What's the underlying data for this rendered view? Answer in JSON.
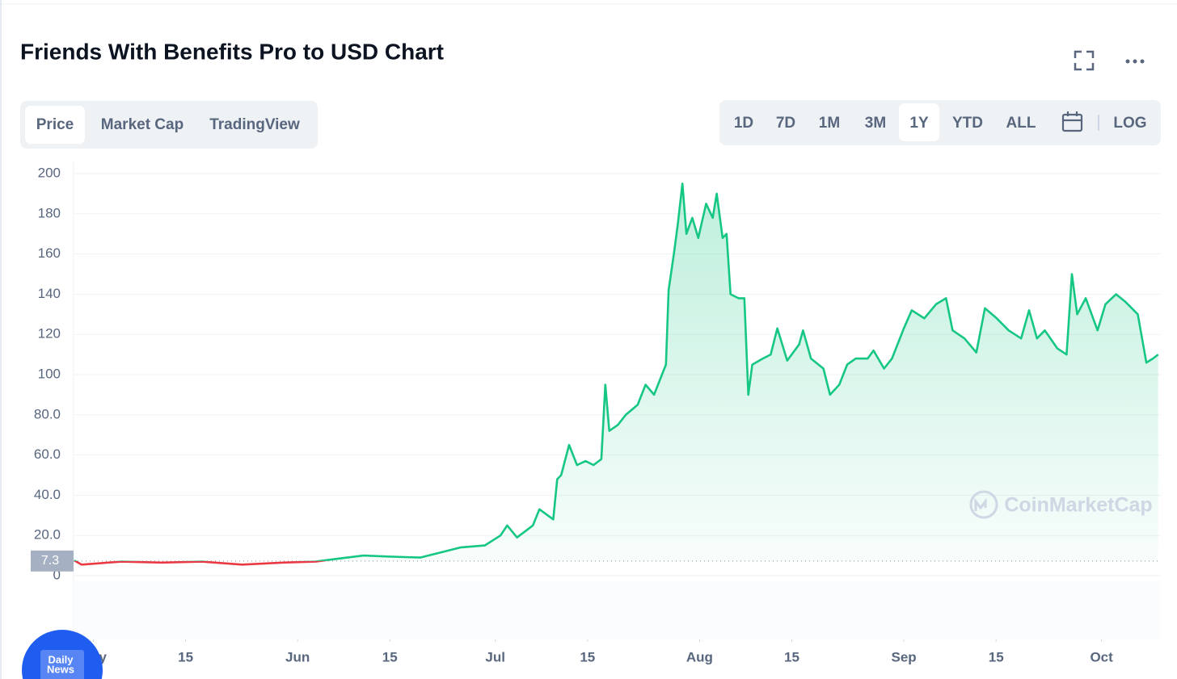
{
  "header": {
    "title": "Friends With Benefits Pro to USD Chart"
  },
  "tabs": [
    "Price",
    "Market Cap",
    "TradingView"
  ],
  "active_tab": 0,
  "ranges": [
    "1D",
    "7D",
    "1M",
    "3M",
    "1Y",
    "YTD",
    "ALL"
  ],
  "active_range": 4,
  "log_button": "LOG",
  "watermark": "CoinMarketCap",
  "badge": [
    "Daily",
    "News"
  ],
  "chart_data": {
    "type": "line",
    "x": [
      -2.9,
      -1.8,
      4.3,
      10.4,
      16.5,
      22.6,
      28.8,
      33.7,
      37.3,
      41,
      44.7,
      49.6,
      55.7,
      59.4,
      61.8,
      62.8,
      64.3,
      66.7,
      67.7,
      69.8,
      70.4,
      71,
      72.2,
      73.4,
      74.7,
      75.9,
      77.1,
      77.7,
      78.3,
      79.6,
      80.8,
      82.6,
      83.8,
      85.1,
      86.3,
      86.9,
      87.3,
      88.1,
      88.7,
      89.4,
      90,
      90.9,
      91.8,
      93,
      94,
      94.6,
      95.5,
      96.1,
      96.7,
      97.9,
      98.8,
      99.4,
      100,
      101.6,
      102.8,
      103.8,
      105.3,
      107.1,
      107.7,
      108.9,
      110.8,
      111.8,
      113.2,
      114.4,
      115.7,
      117.5,
      118.4,
      120,
      121.2,
      123,
      124.2,
      126.1,
      127.9,
      129.4,
      130.4,
      132.2,
      134,
      135.3,
      137.1,
      138.9,
      140.8,
      142,
      143.2,
      144.4,
      146.3,
      147.7,
      148.5,
      149.3,
      150.6,
      152.4,
      153.6,
      155.2,
      156.7,
      158.5,
      159.8,
      160.8,
      161.6
    ],
    "series": [
      {
        "name": "Price",
        "color": "#16c784",
        "below_color": "#ea3943",
        "values": [
          7.6,
          5.5,
          7,
          6.5,
          7,
          5.5,
          6.5,
          7,
          8.5,
          10,
          9.5,
          9,
          14,
          15,
          20,
          25,
          19,
          25,
          33,
          28,
          48,
          50,
          65,
          55,
          57,
          55,
          58,
          95,
          72,
          75,
          80,
          85,
          95,
          90,
          100,
          105,
          142,
          160,
          175,
          195,
          170,
          178,
          168,
          185,
          178,
          190,
          168,
          170,
          140,
          138,
          138,
          90,
          105,
          108,
          110,
          123,
          107,
          115,
          122,
          108,
          103,
          90,
          95,
          105,
          108,
          108,
          112,
          103,
          108,
          123,
          132,
          128,
          135,
          138,
          122,
          118,
          111,
          133,
          128,
          122,
          118,
          132,
          118,
          122,
          113,
          110,
          150,
          130,
          138,
          122,
          135,
          140,
          136,
          130,
          106,
          108,
          110
        ]
      }
    ],
    "reference_value": 7.3,
    "xlim": [
      -3,
      162
    ],
    "xticks": [
      {
        "value": 0,
        "label": "May"
      },
      {
        "value": 14,
        "label": "15"
      },
      {
        "value": 31,
        "label": "Jun"
      },
      {
        "value": 45,
        "label": "15"
      },
      {
        "value": 61,
        "label": "Jul"
      },
      {
        "value": 75,
        "label": "15"
      },
      {
        "value": 92,
        "label": "Aug"
      },
      {
        "value": 106,
        "label": "15"
      },
      {
        "value": 123,
        "label": "Sep"
      },
      {
        "value": 137,
        "label": "15"
      },
      {
        "value": 153,
        "label": "Oct"
      }
    ],
    "ylim": [
      0,
      200
    ],
    "yticks": [
      0,
      {
        "value": 20,
        "label": "20.0"
      },
      {
        "value": 40,
        "label": "40.0"
      },
      {
        "value": 60,
        "label": "60.0"
      },
      {
        "value": 80,
        "label": "80.0"
      },
      100,
      120,
      140,
      160,
      180,
      200
    ],
    "grid": true
  }
}
